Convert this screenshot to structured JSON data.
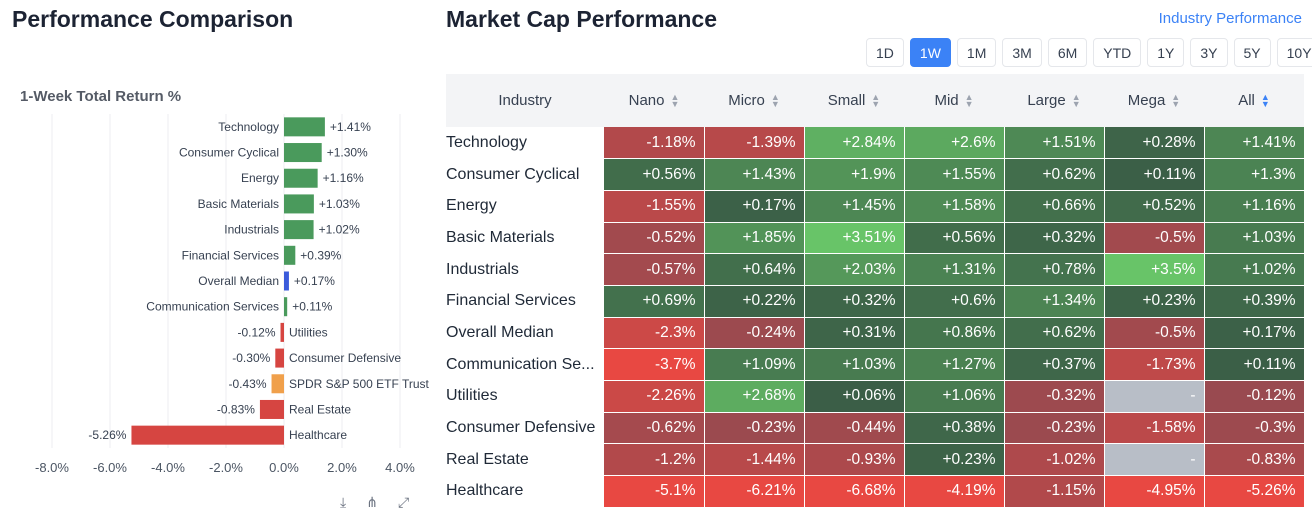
{
  "left_panel": {
    "title": "Performance Comparison",
    "subtitle": "1-Week Total Return %",
    "tools": [
      "⤓",
      "⋔",
      "⤢"
    ]
  },
  "right_panel": {
    "title": "Market Cap Performance",
    "link": "Industry Performance",
    "ranges": [
      "1D",
      "1W",
      "1M",
      "3M",
      "6M",
      "YTD",
      "1Y",
      "3Y",
      "5Y",
      "10Y"
    ],
    "active_range": "1W",
    "columns": [
      "Industry",
      "Nano",
      "Micro",
      "Small",
      "Mid",
      "Large",
      "Mega",
      "All"
    ],
    "rows": [
      {
        "industry": "Technology",
        "values": [
          "-1.18%",
          "-1.39%",
          "+2.84%",
          "+2.6%",
          "+1.51%",
          "+0.28%",
          "+1.41%"
        ]
      },
      {
        "industry": "Consumer Cyclical",
        "values": [
          "+0.56%",
          "+1.43%",
          "+1.9%",
          "+1.55%",
          "+0.62%",
          "+0.11%",
          "+1.3%"
        ]
      },
      {
        "industry": "Energy",
        "values": [
          "-1.55%",
          "+0.17%",
          "+1.45%",
          "+1.58%",
          "+0.66%",
          "+0.52%",
          "+1.16%"
        ]
      },
      {
        "industry": "Basic Materials",
        "values": [
          "-0.52%",
          "+1.85%",
          "+3.51%",
          "+0.56%",
          "+0.32%",
          "-0.5%",
          "+1.03%"
        ]
      },
      {
        "industry": "Industrials",
        "values": [
          "-0.57%",
          "+0.64%",
          "+2.03%",
          "+1.31%",
          "+0.78%",
          "+3.5%",
          "+1.02%"
        ]
      },
      {
        "industry": "Financial Services",
        "values": [
          "+0.69%",
          "+0.22%",
          "+0.32%",
          "+0.6%",
          "+1.34%",
          "+0.23%",
          "+0.39%"
        ]
      },
      {
        "industry": "Overall Median",
        "values": [
          "-2.3%",
          "-0.24%",
          "+0.31%",
          "+0.86%",
          "+0.62%",
          "-0.5%",
          "+0.17%"
        ]
      },
      {
        "industry": "Communication Se...",
        "values": [
          "-3.7%",
          "+1.09%",
          "+1.03%",
          "+1.27%",
          "+0.37%",
          "-1.73%",
          "+0.11%"
        ]
      },
      {
        "industry": "Utilities",
        "values": [
          "-2.26%",
          "+2.68%",
          "+0.06%",
          "+1.06%",
          "-0.32%",
          "-",
          "-0.12%"
        ]
      },
      {
        "industry": "Consumer Defensive",
        "values": [
          "-0.62%",
          "-0.23%",
          "-0.44%",
          "+0.38%",
          "-0.23%",
          "-1.58%",
          "-0.3%"
        ]
      },
      {
        "industry": "Real Estate",
        "values": [
          "-1.2%",
          "-1.44%",
          "-0.93%",
          "+0.23%",
          "-1.02%",
          "-",
          "-0.83%"
        ]
      },
      {
        "industry": "Healthcare",
        "values": [
          "-5.1%",
          "-6.21%",
          "-6.68%",
          "-4.19%",
          "-1.15%",
          "-4.95%",
          "-5.26%"
        ]
      }
    ]
  },
  "colors": {
    "positive": "#4a9a5c",
    "negative": "#d64541",
    "neutral_bar": "#3b5bdb",
    "benchmark_bar": "#f0a04b",
    "no_data": "#b8bec7",
    "accent": "#3b82f6"
  },
  "chart_data": {
    "type": "bar",
    "orientation": "horizontal",
    "title": "1-Week Total Return %",
    "categories": [
      "Technology",
      "Consumer Cyclical",
      "Energy",
      "Basic Materials",
      "Industrials",
      "Financial Services",
      "Overall Median",
      "Communication Services",
      "Utilities",
      "Consumer Defensive",
      "SPDR S&P 500 ETF Trust",
      "Real Estate",
      "Healthcare"
    ],
    "values": [
      1.41,
      1.3,
      1.16,
      1.03,
      1.02,
      0.39,
      0.17,
      0.11,
      -0.12,
      -0.3,
      -0.43,
      -0.83,
      -5.26
    ],
    "value_labels": [
      "+1.41%",
      "+1.30%",
      "+1.16%",
      "+1.03%",
      "+1.02%",
      "+0.39%",
      "+0.17%",
      "+0.11%",
      "-0.12%",
      "-0.30%",
      "-0.43%",
      "-0.83%",
      "-5.26%"
    ],
    "xlim": [
      -8,
      4
    ],
    "x_ticks": [
      -8,
      -6,
      -4,
      -2,
      0,
      2,
      4
    ],
    "x_tick_labels": [
      "-8.0%",
      "-6.0%",
      "-4.0%",
      "-2.0%",
      "0.0%",
      "2.0%",
      "4.0%"
    ],
    "grid": true
  }
}
